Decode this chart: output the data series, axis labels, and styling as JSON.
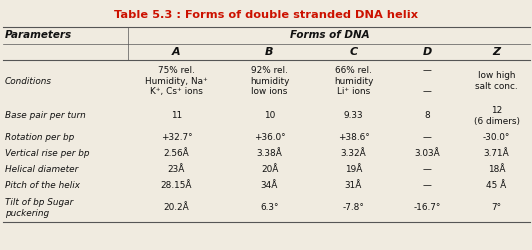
{
  "title": "Table 5.3 : Forms of double stranded DNA helix",
  "title_color": "#cc1100",
  "bg_color": "#f0ebe0",
  "rows": [
    [
      "Conditions",
      "75% rel.\nHumidity, Na⁺\nK⁺, Cs⁺ ions",
      "92% rel.\nhumidity\nlow ions",
      "66% rel.\nhumidity\nLi⁺ ions",
      "—\n\n—",
      "low high\nsalt conc."
    ],
    [
      "Base pair per turn",
      "11",
      "10",
      "9.33",
      "8",
      "12\n(6 dimers)"
    ],
    [
      "Rotation per bp",
      "+32.7°",
      "+36.0°",
      "+38.6°",
      "—",
      "-30.0°"
    ],
    [
      "Vertical rise per bp",
      "2.56Å",
      "3.38Å",
      "3.32Å",
      "3.03Å",
      "3.71Å"
    ],
    [
      "Helical diameter",
      "23Å",
      "20Å",
      "19Å",
      "—",
      "18Å"
    ],
    [
      "Pitch of the helix",
      "28.15Å",
      "34Å",
      "31Å",
      "—",
      "45 Å"
    ],
    [
      "Tilt of bp Sugar\npuckering",
      "20.2Å",
      "6.3°",
      "-7.8°",
      "-16.7°",
      "7°"
    ]
  ],
  "figsize": [
    5.32,
    2.5
  ],
  "dpi": 100,
  "line_color": "#555555",
  "text_color": "#111111",
  "title_fontsize": 8.2,
  "header_fontsize": 7.5,
  "cell_fontsize": 6.4
}
